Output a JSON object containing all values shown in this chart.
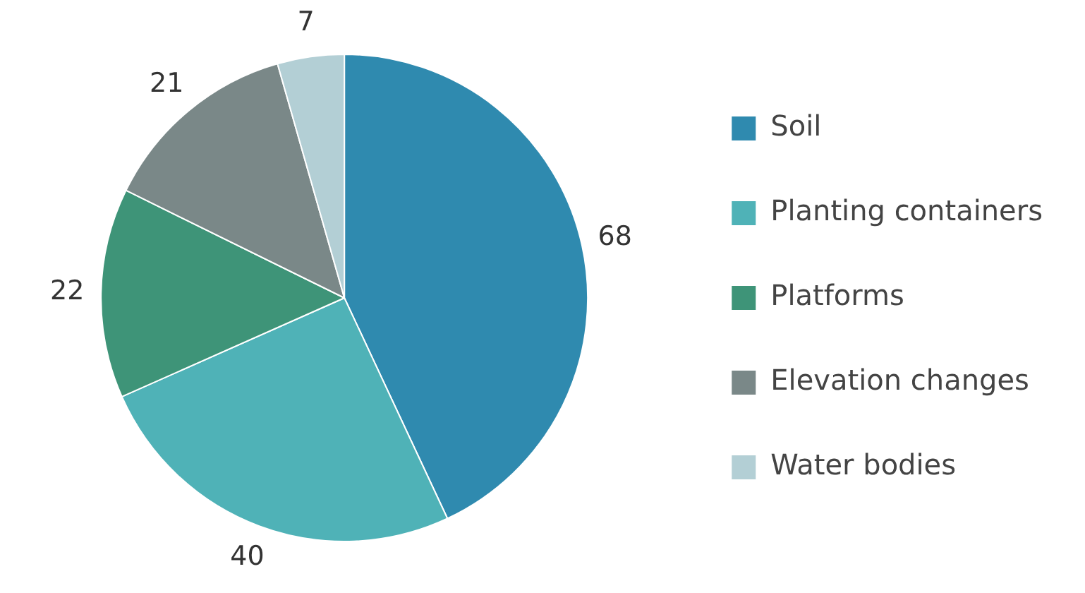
{
  "chart_data": {
    "type": "pie",
    "categories": [
      "Soil",
      "Planting containers",
      "Platforms",
      "Elevation changes",
      "Water bodies"
    ],
    "values": [
      68,
      40,
      22,
      21,
      7
    ],
    "colors": [
      "#2f8aaf",
      "#4fb2b7",
      "#3e9478",
      "#7a8888",
      "#b3cfd5"
    ],
    "data_labels": true,
    "legend": "right"
  }
}
